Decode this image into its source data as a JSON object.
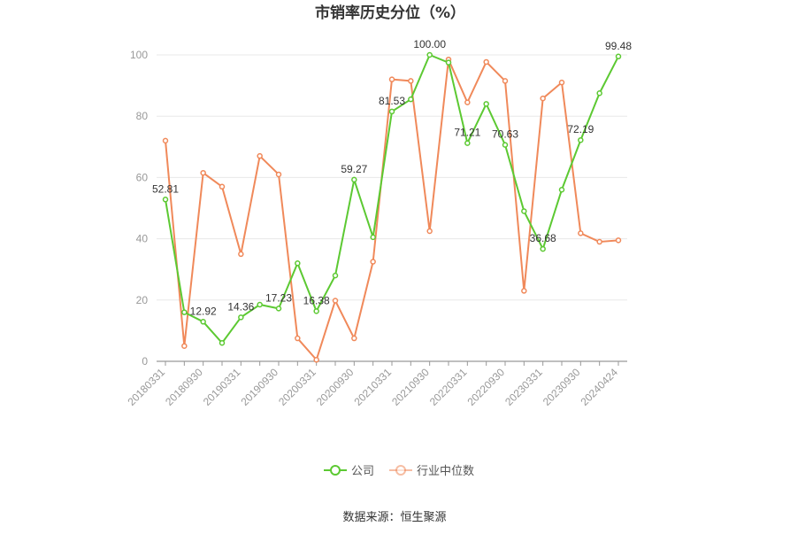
{
  "chart_data": {
    "type": "line",
    "title": "市销率历史分位（%）",
    "source": "数据来源：恒生聚源",
    "ylim": [
      0,
      100
    ],
    "yticks": [
      0,
      20,
      40,
      60,
      80,
      100
    ],
    "grid": "horizontal",
    "legend_position": "bottom-center",
    "x_tick_labels": [
      "20180331",
      "20180930",
      "20190331",
      "20190930",
      "20200331",
      "20200930",
      "20210331",
      "20210930",
      "20220331",
      "20220930",
      "20230331",
      "20230930",
      "20240424"
    ],
    "x": [
      "20180331",
      "20180630",
      "20180930",
      "20181231",
      "20190331",
      "20190630",
      "20190930",
      "20191231",
      "20200331",
      "20200630",
      "20200930",
      "20201231",
      "20210331",
      "20210630",
      "20210930",
      "20211231",
      "20220331",
      "20220630",
      "20220930",
      "20221231",
      "20230331",
      "20230630",
      "20230930",
      "20231231",
      "20240424"
    ],
    "series": [
      {
        "name": "公司",
        "color": "#5cc932",
        "values": [
          52.81,
          16.0,
          12.92,
          6.0,
          14.36,
          18.5,
          17.23,
          32.0,
          16.38,
          28.0,
          59.27,
          40.5,
          81.53,
          85.5,
          100.0,
          97.5,
          71.21,
          84.0,
          70.63,
          49.0,
          36.68,
          56.0,
          72.19,
          87.5,
          99.48
        ],
        "labels": {
          "0": "52.81",
          "2": "12.92",
          "4": "14.36",
          "6": "17.23",
          "8": "16.38",
          "10": "59.27",
          "12": "81.53",
          "14": "100.00",
          "16": "71.21",
          "18": "70.63",
          "20": "36.68",
          "22": "72.19",
          "24": "99.48"
        }
      },
      {
        "name": "行业中位数",
        "color": "#f0895a",
        "values": [
          72.0,
          5.0,
          61.5,
          57.0,
          35.0,
          67.0,
          61.0,
          7.5,
          0.5,
          19.8,
          7.5,
          32.5,
          92.0,
          91.5,
          42.5,
          98.5,
          84.5,
          97.7,
          91.5,
          23.0,
          85.8,
          91.0,
          41.8,
          39.0,
          39.5
        ]
      }
    ]
  }
}
